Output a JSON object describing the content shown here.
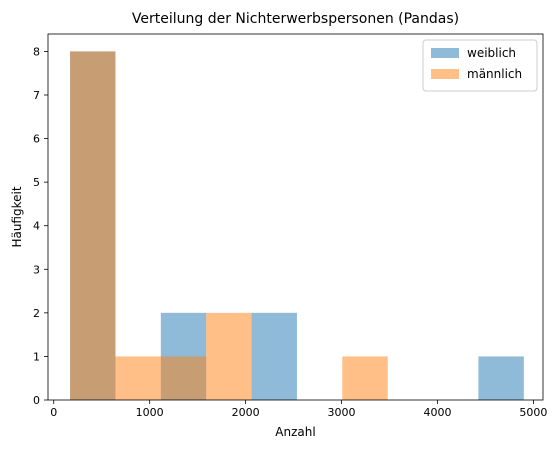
{
  "chart_data": {
    "type": "bar",
    "title": "Verteilung der Nichterwerbspersonen (Pandas)",
    "xlabel": "Anzahl",
    "ylabel": "Häufigkeit",
    "xlim": [
      -60,
      5100
    ],
    "ylim": [
      0,
      8.4
    ],
    "xticks": [
      0,
      1000,
      2000,
      3000,
      4000,
      5000
    ],
    "xtick_labels": [
      "0",
      "1000",
      "2000",
      "3000",
      "4000",
      "5000"
    ],
    "yticks": [
      0,
      1,
      2,
      3,
      4,
      5,
      6,
      7,
      8
    ],
    "ytick_labels": [
      "0",
      "1",
      "2",
      "3",
      "4",
      "5",
      "6",
      "7",
      "8"
    ],
    "grid": false,
    "legend_position": "top-right",
    "series": [
      {
        "name": "weiblich",
        "color": "#1f77b4",
        "opacity": 0.5,
        "bin_edges": [
          170,
          643,
          1116,
          1589,
          2062,
          2535,
          3008,
          3481,
          3954,
          4427,
          4900
        ],
        "counts": [
          8,
          0,
          2,
          0,
          2,
          0,
          0,
          0,
          0,
          1
        ]
      },
      {
        "name": "männlich",
        "color": "#ff7f0e",
        "opacity": 0.5,
        "bin_edges": [
          170,
          643,
          1116,
          1589,
          2062,
          2535,
          3008,
          3481
        ],
        "counts": [
          8,
          1,
          1,
          2,
          0,
          0,
          1
        ]
      }
    ]
  }
}
